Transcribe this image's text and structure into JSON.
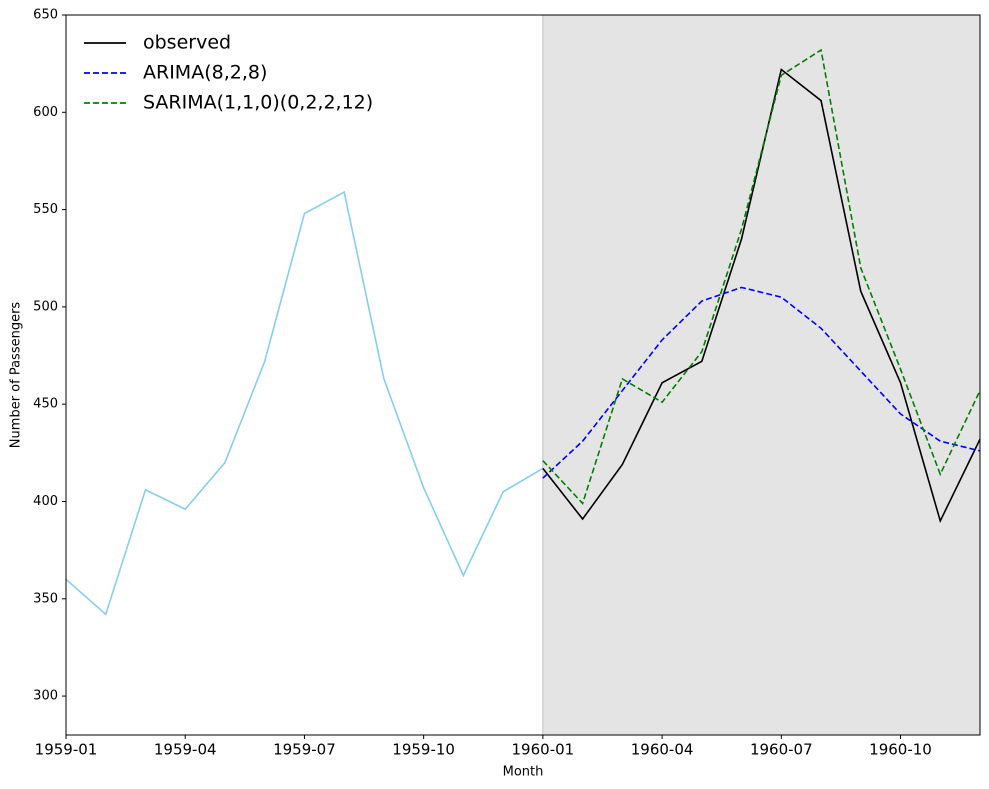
{
  "chart_data": {
    "type": "line",
    "x": [
      "1959-01",
      "1959-02",
      "1959-03",
      "1959-04",
      "1959-05",
      "1959-06",
      "1959-07",
      "1959-08",
      "1959-09",
      "1959-10",
      "1959-11",
      "1959-12",
      "1960-01",
      "1960-02",
      "1960-03",
      "1960-04",
      "1960-05",
      "1960-06",
      "1960-07",
      "1960-08",
      "1960-09",
      "1960-10",
      "1960-11",
      "1960-12"
    ],
    "series": [
      {
        "color": "#87ceeb",
        "linestyle": "solid",
        "values": [
          360,
          342,
          406,
          396,
          420,
          472,
          548,
          559,
          463,
          407,
          362,
          405,
          417,
          null,
          null,
          null,
          null,
          null,
          null,
          null,
          null,
          null,
          null,
          null
        ]
      },
      {
        "name": "observed",
        "color": "#000000",
        "linestyle": "solid",
        "values": [
          null,
          null,
          null,
          null,
          null,
          null,
          null,
          null,
          null,
          null,
          null,
          null,
          417,
          391,
          419,
          461,
          472,
          535,
          622,
          606,
          508,
          461,
          390,
          432
        ]
      },
      {
        "name": "ARIMA(8,2,8)",
        "color": "#0000ff",
        "linestyle": "dashed",
        "values": [
          null,
          null,
          null,
          null,
          null,
          null,
          null,
          null,
          null,
          null,
          null,
          null,
          412,
          431,
          457,
          483,
          503,
          510,
          505,
          489,
          467,
          445,
          431,
          426
        ]
      },
      {
        "name": "SARIMA(1,1,0)(0,2,2,12)",
        "color": "#008000",
        "linestyle": "dashed",
        "values": [
          null,
          null,
          null,
          null,
          null,
          null,
          null,
          null,
          null,
          null,
          null,
          null,
          421,
          399,
          463,
          451,
          477,
          540,
          619,
          632,
          520,
          468,
          414,
          457
        ]
      }
    ],
    "xlabel": "Month",
    "ylabel": "Number of Passengers",
    "ylim": [
      280,
      650
    ],
    "yticks": [
      300,
      350,
      400,
      450,
      500,
      550,
      600,
      650
    ],
    "xticks": [
      "1959-01",
      "1959-04",
      "1959-07",
      "1959-10",
      "1960-01",
      "1960-04",
      "1960-07",
      "1960-10"
    ],
    "legend": "upper left",
    "forecast_shade_color": "#e4e4e4"
  }
}
